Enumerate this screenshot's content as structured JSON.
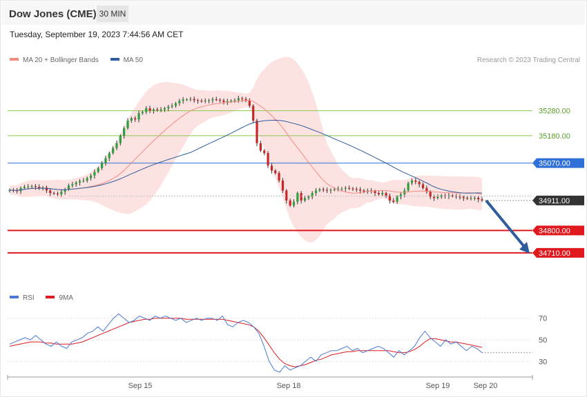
{
  "header": {
    "title": "Dow Jones (CME)",
    "interval": "30 MIN",
    "timestamp": "Tuesday, September 19, 2023 7:44:56 AM CET",
    "credit": "Research © 2023 Trading Central"
  },
  "legend_main": [
    {
      "label": "MA 20 + Bollinger Bands",
      "color": "#f28b82"
    },
    {
      "label": "MA 50",
      "color": "#2e5c9c"
    }
  ],
  "legend_rsi": [
    {
      "label": "RSI",
      "color": "#4a78d6"
    },
    {
      "label": "9MA",
      "color": "#e0191e"
    }
  ],
  "chart_data": [
    {
      "type": "candlestick",
      "title": "Dow Jones (CME)",
      "x_ticks": [
        "Sep 15",
        "Sep 18",
        "Sep 19",
        "Sep 20"
      ],
      "ylim": [
        34660,
        35420
      ],
      "current_price": "34911.00",
      "levels": [
        {
          "value": 35280,
          "label": "35280.00",
          "kind": "resistance",
          "color": "#8cc84b"
        },
        {
          "value": 35180,
          "label": "35180.00",
          "kind": "resistance",
          "color": "#8cc84b"
        },
        {
          "value": 35070,
          "label": "35070.00",
          "kind": "pivot",
          "color": "#2f6fd8"
        },
        {
          "value": 34800,
          "label": "34800.00",
          "kind": "support",
          "color": "#e0191e"
        },
        {
          "value": 34710,
          "label": "34710.00",
          "kind": "support",
          "color": "#e0191e"
        }
      ],
      "forecast_arrow": {
        "from": 34920,
        "to": 34710,
        "color": "#2e5c9c"
      },
      "close": [
        34962,
        34960,
        34958,
        34970,
        34975,
        34976,
        34978,
        34975,
        34968,
        34972,
        34960,
        34950,
        34948,
        34945,
        34955,
        34965,
        34980,
        34985,
        34992,
        34998,
        35000,
        35010,
        35020,
        35035,
        35050,
        35070,
        35090,
        35110,
        35130,
        35150,
        35180,
        35210,
        35240,
        35250,
        35245,
        35270,
        35275,
        35290,
        35280,
        35285,
        35282,
        35285,
        35290,
        35296,
        35300,
        35310,
        35320,
        35325,
        35325,
        35327,
        35322,
        35320,
        35318,
        35320,
        35322,
        35326,
        35324,
        35321,
        35315,
        35318,
        35320,
        35322,
        35330,
        35327,
        35320,
        35300,
        35240,
        35150,
        35120,
        35110,
        35060,
        35040,
        35030,
        35000,
        34960,
        34920,
        34900,
        34915,
        34950,
        34920,
        34930,
        34935,
        34950,
        34960,
        34965,
        34962,
        34960,
        34963,
        34965,
        34967,
        34968,
        34970,
        34968,
        34966,
        34964,
        34960,
        34955,
        34960,
        34958,
        34950,
        34945,
        34950,
        34940,
        34920,
        34915,
        34935,
        34945,
        34960,
        34990,
        35000,
        34995,
        34985,
        34970,
        34955,
        34935,
        34930,
        34935,
        34940,
        34938,
        34940,
        34938,
        34935,
        34934,
        34930,
        34928,
        34930,
        34931,
        34925,
        34920
      ],
      "rsi": {
        "ylim": [
          20,
          80
        ],
        "ticks": [
          70,
          50,
          30
        ],
        "rsi": [
          46,
          48,
          50,
          52,
          50,
          54,
          50,
          46,
          44,
          48,
          44,
          42,
          48,
          50,
          52,
          56,
          58,
          62,
          58,
          64,
          70,
          74,
          70,
          66,
          68,
          72,
          70,
          68,
          72,
          70,
          72,
          70,
          68,
          70,
          66,
          68,
          70,
          68,
          70,
          70,
          68,
          72,
          64,
          62,
          66,
          68,
          66,
          62,
          56,
          44,
          30,
          22,
          20,
          26,
          22,
          24,
          26,
          30,
          34,
          30,
          36,
          38,
          40,
          40,
          42,
          44,
          40,
          42,
          38,
          40,
          42,
          44,
          42,
          38,
          34,
          40,
          36,
          40,
          44,
          52,
          58,
          52,
          48,
          44,
          50,
          46,
          48,
          44,
          40,
          44,
          42,
          38
        ],
        "ma9": [
          44,
          45,
          46,
          47,
          48,
          48,
          48,
          47,
          47,
          46,
          46,
          46,
          46,
          47,
          48,
          50,
          52,
          54,
          56,
          58,
          60,
          62,
          64,
          66,
          67,
          68,
          69,
          69,
          70,
          70,
          70,
          70,
          70,
          70,
          69,
          69,
          69,
          69,
          69,
          69,
          69,
          69,
          68,
          67,
          66,
          65,
          64,
          62,
          58,
          52,
          45,
          38,
          32,
          28,
          26,
          25,
          26,
          27,
          29,
          31,
          32,
          34,
          36,
          37,
          38,
          39,
          39,
          40,
          40,
          40,
          40,
          40,
          40,
          40,
          39,
          38,
          38,
          39,
          41,
          44,
          48,
          51,
          51,
          50,
          49,
          48,
          48,
          47,
          46,
          45,
          44,
          43
        ]
      }
    }
  ]
}
